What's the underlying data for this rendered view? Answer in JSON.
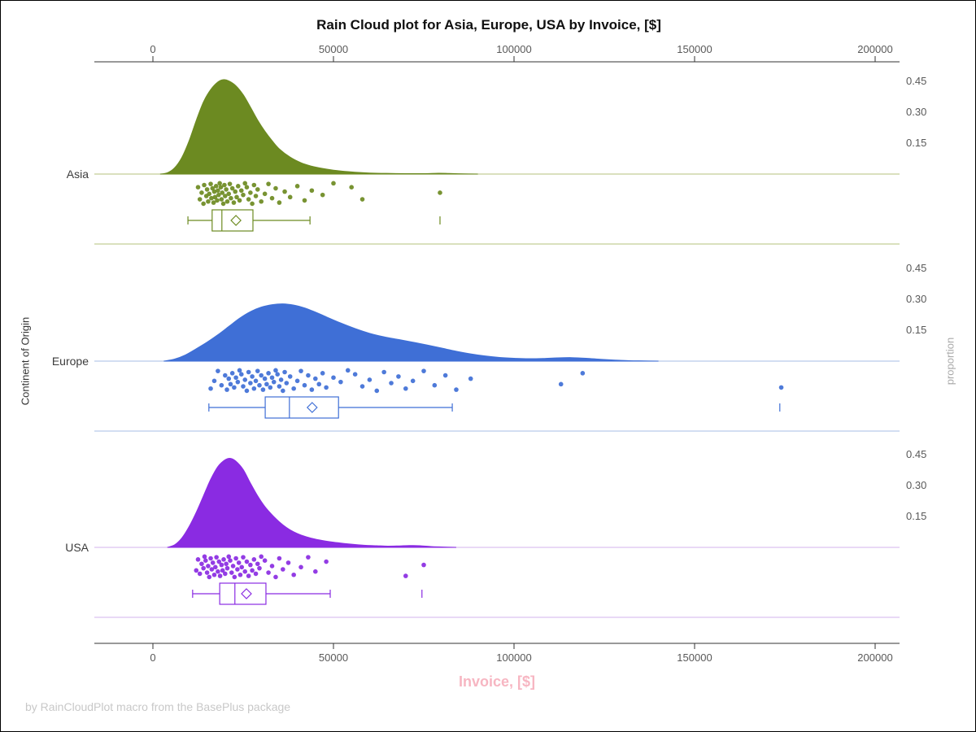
{
  "title": "Rain Cloud plot for Asia, Europe, USA by Invoice, [$]",
  "footer": "by RainCloudPlot macro from the BasePlus package",
  "chart_data": {
    "type": "raincloud",
    "title": "Rain Cloud plot for Asia, Europe, USA by Invoice, [$]",
    "xlabel": "Invoice, [$]",
    "ylabel_left": "Continent of Origin",
    "ylabel_right": "proportion",
    "x_axis": {
      "min": 0,
      "max": 200000,
      "ticks": [
        0,
        50000,
        100000,
        150000,
        200000
      ],
      "tick_labels": [
        "0",
        "50000",
        "100000",
        "150000",
        "200000"
      ]
    },
    "proportion_ticks": [
      0.45,
      0.3,
      0.15
    ],
    "proportion_tick_labels": [
      "0.45",
      "0.30",
      "0.15"
    ],
    "categories": [
      "Asia",
      "Europe",
      "USA"
    ],
    "jitter_cycle": [
      0.2,
      0.75,
      0.45,
      0.95,
      0.1,
      0.6,
      0.3,
      0.85,
      0.5,
      0.05,
      0.7,
      0.25,
      0.9,
      0.4,
      0.65,
      0.15,
      0.8,
      0.35,
      0.55,
      0.02
    ],
    "colors": {
      "asia": "#6C8A21",
      "europe": "#3F6FD6",
      "usa": "#8A2BE2",
      "xlabel_pink": "#F7B6C2",
      "footer_gray": "#C8C8C8",
      "tick_gray": "#595959",
      "axis": "#333333"
    },
    "series": [
      {
        "name": "Asia",
        "color": "#6C8A21",
        "light_color": "#C3CD96",
        "density": [
          [
            2000,
            0
          ],
          [
            4000,
            0.006
          ],
          [
            6000,
            0.03
          ],
          [
            8000,
            0.08
          ],
          [
            10000,
            0.16
          ],
          [
            12000,
            0.26
          ],
          [
            14000,
            0.35
          ],
          [
            16000,
            0.41
          ],
          [
            18000,
            0.447
          ],
          [
            19500,
            0.458
          ],
          [
            21000,
            0.452
          ],
          [
            23000,
            0.428
          ],
          [
            25000,
            0.385
          ],
          [
            27000,
            0.325
          ],
          [
            29000,
            0.262
          ],
          [
            31000,
            0.208
          ],
          [
            33000,
            0.162
          ],
          [
            35000,
            0.122
          ],
          [
            38000,
            0.082
          ],
          [
            41000,
            0.055
          ],
          [
            44000,
            0.038
          ],
          [
            47000,
            0.027
          ],
          [
            50000,
            0.019
          ],
          [
            54000,
            0.012
          ],
          [
            58000,
            0.007
          ],
          [
            62000,
            0.004
          ],
          [
            66000,
            0.003
          ],
          [
            70000,
            0.002
          ],
          [
            75000,
            0.002
          ],
          [
            79000,
            0.004
          ],
          [
            82000,
            0.003
          ],
          [
            86000,
            0.001
          ],
          [
            90000,
            0
          ]
        ],
        "rain_values": [
          12500,
          13000,
          13500,
          14000,
          14200,
          14800,
          15000,
          15300,
          15600,
          16000,
          16200,
          16500,
          16800,
          17000,
          17200,
          17500,
          17800,
          18000,
          18200,
          18500,
          18800,
          19000,
          19200,
          19500,
          19800,
          20000,
          20300,
          20600,
          21000,
          21300,
          21600,
          22000,
          22400,
          22800,
          23200,
          23600,
          24000,
          24500,
          25000,
          25500,
          26000,
          26500,
          27000,
          27500,
          28000,
          28500,
          29000,
          30000,
          31000,
          32000,
          33000,
          34000,
          35000,
          36500,
          38000,
          40000,
          42000,
          44000,
          47000,
          50000,
          55000,
          58000,
          79500
        ],
        "box": {
          "whisker_low": 9700,
          "q1": 16400,
          "median": 19100,
          "q3": 27700,
          "whisker_high": 43500,
          "mean": 23000,
          "outliers": [
            79500
          ]
        }
      },
      {
        "name": "Europe",
        "color": "#3F6FD6",
        "light_color": "#B9CBEA",
        "density": [
          [
            3000,
            0
          ],
          [
            6000,
            0.01
          ],
          [
            9000,
            0.03
          ],
          [
            12000,
            0.06
          ],
          [
            15000,
            0.092
          ],
          [
            18000,
            0.128
          ],
          [
            21000,
            0.168
          ],
          [
            24000,
            0.208
          ],
          [
            27000,
            0.24
          ],
          [
            30000,
            0.262
          ],
          [
            33000,
            0.274
          ],
          [
            36000,
            0.278
          ],
          [
            39000,
            0.272
          ],
          [
            42000,
            0.258
          ],
          [
            45000,
            0.238
          ],
          [
            48000,
            0.215
          ],
          [
            52000,
            0.185
          ],
          [
            56000,
            0.158
          ],
          [
            60000,
            0.135
          ],
          [
            64000,
            0.118
          ],
          [
            68000,
            0.105
          ],
          [
            72000,
            0.092
          ],
          [
            76000,
            0.078
          ],
          [
            80000,
            0.063
          ],
          [
            84000,
            0.048
          ],
          [
            88000,
            0.035
          ],
          [
            92000,
            0.025
          ],
          [
            96000,
            0.018
          ],
          [
            100000,
            0.014
          ],
          [
            104000,
            0.012
          ],
          [
            108000,
            0.013
          ],
          [
            112000,
            0.016
          ],
          [
            116000,
            0.017
          ],
          [
            120000,
            0.014
          ],
          [
            124000,
            0.009
          ],
          [
            128000,
            0.005
          ],
          [
            132000,
            0.002
          ],
          [
            136000,
            0.001
          ],
          [
            140000,
            0
          ]
        ],
        "rain_values": [
          16000,
          17000,
          18000,
          19000,
          20000,
          20500,
          21000,
          21500,
          22000,
          22500,
          23000,
          23500,
          24000,
          24500,
          25000,
          25500,
          26000,
          26500,
          27000,
          27500,
          28000,
          28500,
          29000,
          29500,
          30000,
          30500,
          31000,
          31500,
          32000,
          32500,
          33000,
          33500,
          34000,
          34500,
          35000,
          35500,
          36000,
          36500,
          37000,
          38000,
          39000,
          40000,
          41000,
          42000,
          43000,
          44000,
          45000,
          46000,
          47000,
          48000,
          50000,
          52000,
          54000,
          56000,
          58000,
          60000,
          62000,
          64000,
          66000,
          68000,
          70000,
          72000,
          75000,
          78000,
          81000,
          84000,
          88000,
          113000,
          119000,
          174000
        ],
        "box": {
          "whisker_low": 15500,
          "q1": 31100,
          "median": 37800,
          "q3": 51400,
          "whisker_high": 82900,
          "mean": 44100,
          "outliers": [
            173600
          ]
        }
      },
      {
        "name": "USA",
        "color": "#8A2BE2",
        "light_color": "#DCC2F0",
        "density": [
          [
            4000,
            0
          ],
          [
            6000,
            0.012
          ],
          [
            8000,
            0.045
          ],
          [
            10000,
            0.1
          ],
          [
            12000,
            0.17
          ],
          [
            14000,
            0.25
          ],
          [
            16000,
            0.33
          ],
          [
            18000,
            0.392
          ],
          [
            20000,
            0.425
          ],
          [
            21500,
            0.432
          ],
          [
            23000,
            0.418
          ],
          [
            25000,
            0.378
          ],
          [
            27000,
            0.312
          ],
          [
            29000,
            0.25
          ],
          [
            31000,
            0.198
          ],
          [
            33000,
            0.158
          ],
          [
            35000,
            0.124
          ],
          [
            37000,
            0.096
          ],
          [
            39000,
            0.075
          ],
          [
            41000,
            0.06
          ],
          [
            44000,
            0.044
          ],
          [
            47000,
            0.033
          ],
          [
            50000,
            0.025
          ],
          [
            53000,
            0.019
          ],
          [
            56000,
            0.014
          ],
          [
            59000,
            0.01
          ],
          [
            62000,
            0.008
          ],
          [
            65000,
            0.006
          ],
          [
            68000,
            0.007
          ],
          [
            71000,
            0.009
          ],
          [
            74000,
            0.008
          ],
          [
            77000,
            0.004
          ],
          [
            80000,
            0.002
          ],
          [
            84000,
            0
          ]
        ],
        "rain_values": [
          12000,
          12500,
          13000,
          13500,
          14000,
          14300,
          14600,
          15000,
          15300,
          15600,
          16000,
          16300,
          16600,
          17000,
          17300,
          17600,
          18000,
          18300,
          18600,
          19000,
          19300,
          19600,
          20000,
          20300,
          20600,
          21000,
          21400,
          21800,
          22200,
          22600,
          23000,
          23400,
          23800,
          24200,
          24600,
          25000,
          25500,
          26000,
          26500,
          27000,
          27500,
          28000,
          28500,
          29000,
          29500,
          30000,
          31000,
          32000,
          33000,
          34000,
          35000,
          36000,
          37500,
          39000,
          41000,
          43000,
          45000,
          48000,
          70000,
          75000
        ],
        "box": {
          "whisker_low": 11000,
          "q1": 18500,
          "median": 22700,
          "q3": 31300,
          "whisker_high": 49100,
          "mean": 25900,
          "outliers": [
            74500
          ]
        }
      }
    ]
  }
}
